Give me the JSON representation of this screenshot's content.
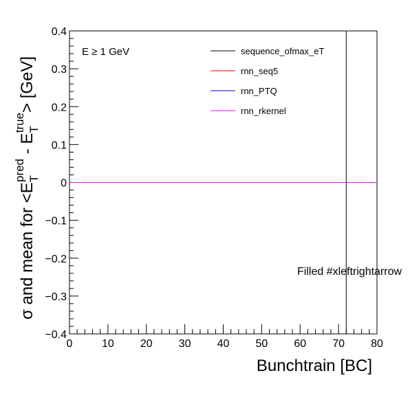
{
  "chart_data": {
    "type": "line",
    "xlabel": "Bunchtrain [BC]",
    "ylabel": {
      "prefix": "σ and mean for <E",
      "sub1": "T",
      "sup1": "pred",
      "mid": " - E",
      "sub2": "T",
      "sup2": "true",
      "suffix": "> [GeV]"
    },
    "xlim": [
      0,
      80
    ],
    "ylim": [
      -0.4,
      0.4
    ],
    "x_ticks": [
      0,
      10,
      20,
      30,
      40,
      50,
      60,
      70,
      80
    ],
    "y_ticks": [
      -0.4,
      -0.3,
      -0.2,
      -0.1,
      0,
      0.1,
      0.2,
      0.3,
      0.4
    ],
    "x_tick_labels": [
      "0",
      "10",
      "20",
      "30",
      "40",
      "50",
      "60",
      "70",
      "80"
    ],
    "y_tick_labels": [
      "−0.4",
      "−0.3",
      "−0.2",
      "−0.1",
      "0",
      "0.1",
      "0.2",
      "0.3",
      "0.4"
    ],
    "annotations": {
      "cut_label": "E ≥ 1 GeV",
      "filled_label": "Filled #xleftrightarrow"
    },
    "vertical_marker_x": 72,
    "legend_position": "top-right",
    "series": [
      {
        "name": "sequence_ofmax_eT",
        "color": "#000000",
        "x": [
          0,
          80
        ],
        "values": [
          0,
          0
        ]
      },
      {
        "name": "rnn_seq5",
        "color": "#ff0000",
        "x": [
          0,
          80
        ],
        "values": [
          0,
          0
        ]
      },
      {
        "name": "rnn_PTQ",
        "color": "#0000ff",
        "x": [
          0,
          80
        ],
        "values": [
          0,
          0
        ]
      },
      {
        "name": "rnn_rkernel",
        "color": "#ff00ff",
        "x": [
          0,
          80
        ],
        "values": [
          0,
          0
        ]
      }
    ]
  }
}
